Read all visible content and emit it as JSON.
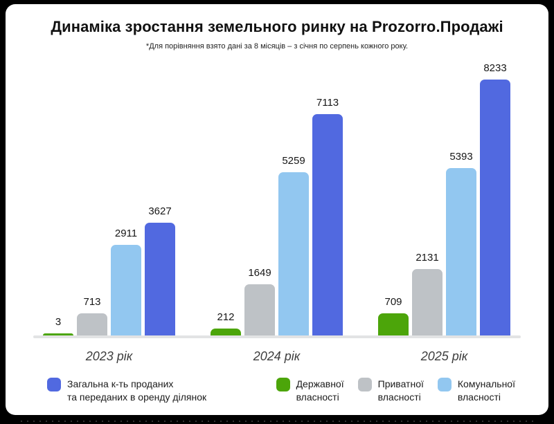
{
  "header": {
    "title": "Динаміка зростання земельного ринку на Prozorro.Продажі",
    "subtitle": "*Для порівняння взято дані за 8 місяців – з січня по серпень кожного року."
  },
  "chart_data": {
    "type": "bar",
    "categories": [
      "2023 рік",
      "2024 рік",
      "2025 рік"
    ],
    "series": [
      {
        "key": "state",
        "name": "Державної власності",
        "color": "#4CA50A",
        "values": [
          3,
          212,
          709
        ]
      },
      {
        "key": "private",
        "name": "Приватної власності",
        "color": "#BEC2C6",
        "values": [
          713,
          1649,
          2131
        ]
      },
      {
        "key": "communal",
        "name": "Комунальної власності",
        "color": "#92C7F0",
        "values": [
          2911,
          5259,
          5393
        ]
      },
      {
        "key": "total",
        "name": "Загальна к-ть проданих та переданих в оренду ділянок",
        "color": "#5169E0",
        "values": [
          3627,
          7113,
          8233
        ]
      }
    ],
    "ylim": [
      0,
      8233
    ],
    "grid": false,
    "value_labels": true,
    "legend_position": "bottom"
  },
  "legend": {
    "items": [
      {
        "key": "total",
        "color": "#5169E0",
        "lines": [
          "Загальна к-ть проданих",
          "та переданих в оренду ділянок"
        ]
      },
      {
        "key": "state",
        "color": "#4CA50A",
        "lines": [
          "Державної",
          "власності"
        ]
      },
      {
        "key": "private",
        "color": "#BEC2C6",
        "lines": [
          "Приватної",
          "власності"
        ]
      },
      {
        "key": "communal",
        "color": "#92C7F0",
        "lines": [
          "Комунальної",
          "власності"
        ]
      }
    ]
  },
  "colors": {
    "frame_bg": "#000000",
    "card_bg": "#ffffff",
    "axis_line": "#E2E3E4"
  }
}
